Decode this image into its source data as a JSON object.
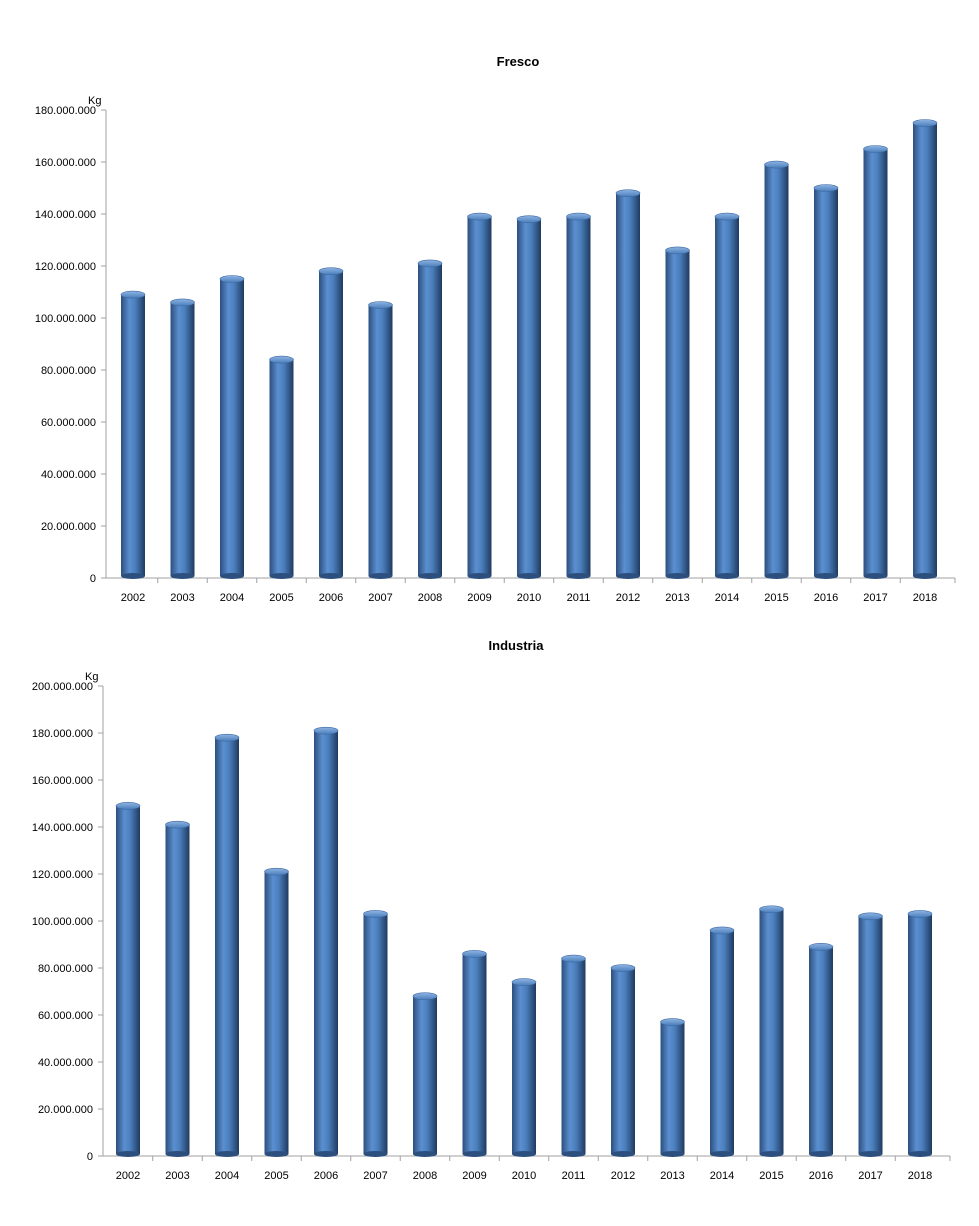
{
  "chart_data": [
    {
      "type": "bar",
      "title": "Fresco",
      "ylabel": "Kg",
      "xlabel": "",
      "ylim": [
        0,
        180000000
      ],
      "yticks": [
        "0",
        "20.000.000",
        "40.000.000",
        "60.000.000",
        "80.000.000",
        "100.000.000",
        "120.000.000",
        "140.000.000",
        "160.000.000",
        "180.000.000"
      ],
      "categories": [
        "2002",
        "2003",
        "2004",
        "2005",
        "2006",
        "2007",
        "2008",
        "2009",
        "2010",
        "2011",
        "2012",
        "2013",
        "2014",
        "2015",
        "2016",
        "2017",
        "2018"
      ],
      "values": [
        109000000,
        106000000,
        115000000,
        84000000,
        118000000,
        105000000,
        121000000,
        139000000,
        138000000,
        139000000,
        148000000,
        126000000,
        139000000,
        159000000,
        150000000,
        165000000,
        175000000
      ],
      "color": "#4a7ebb"
    },
    {
      "type": "bar",
      "title": "Industria",
      "ylabel": "Kg",
      "xlabel": "",
      "ylim": [
        0,
        200000000
      ],
      "yticks": [
        "0",
        "20.000.000",
        "40.000.000",
        "60.000.000",
        "80.000.000",
        "100.000.000",
        "120.000.000",
        "140.000.000",
        "160.000.000",
        "180.000.000",
        "200.000.000"
      ],
      "categories": [
        "2002",
        "2003",
        "2004",
        "2005",
        "2006",
        "2007",
        "2008",
        "2009",
        "2010",
        "2011",
        "2012",
        "2013",
        "2014",
        "2015",
        "2016",
        "2017",
        "2018"
      ],
      "values": [
        149000000,
        141000000,
        178000000,
        121000000,
        181000000,
        103000000,
        68000000,
        86000000,
        74000000,
        84000000,
        80000000,
        57000000,
        96000000,
        105000000,
        89000000,
        102000000,
        103000000
      ],
      "color": "#4a7ebb"
    }
  ]
}
